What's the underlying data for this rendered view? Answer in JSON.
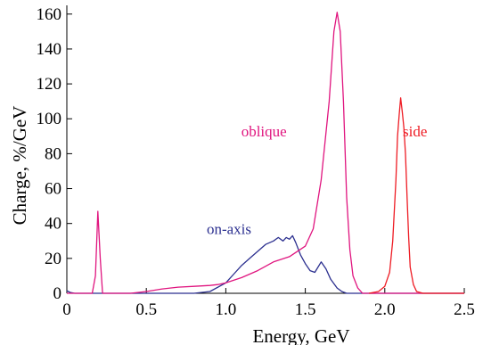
{
  "chart_data": {
    "type": "line",
    "title": "",
    "xlabel": "Energy, GeV",
    "ylabel": "Charge, %/GeV",
    "xlim": [
      0,
      2.5
    ],
    "ylim": [
      0,
      165
    ],
    "x_ticks": [
      0,
      0.5,
      1.0,
      1.5,
      2.0,
      2.5
    ],
    "x_tick_labels": [
      "0",
      "0.5",
      "1.0",
      "1.5",
      "2.0",
      "2.5"
    ],
    "y_ticks": [
      0,
      20,
      40,
      60,
      80,
      100,
      120,
      140,
      160
    ],
    "y_tick_labels": [
      "0",
      "20",
      "40",
      "60",
      "80",
      "100",
      "120",
      "140",
      "160"
    ],
    "grid": false,
    "series": [
      {
        "name": "on-axis",
        "color": "#2b2f8f",
        "label_position": [
          1.02,
          34
        ],
        "points": [
          [
            0.0,
            1.5
          ],
          [
            0.02,
            0.5
          ],
          [
            0.05,
            0
          ],
          [
            0.8,
            0
          ],
          [
            0.9,
            1
          ],
          [
            1.0,
            6
          ],
          [
            1.05,
            11
          ],
          [
            1.1,
            16
          ],
          [
            1.15,
            20
          ],
          [
            1.2,
            24
          ],
          [
            1.25,
            28
          ],
          [
            1.3,
            30
          ],
          [
            1.33,
            32
          ],
          [
            1.36,
            30
          ],
          [
            1.38,
            32
          ],
          [
            1.4,
            31
          ],
          [
            1.42,
            33
          ],
          [
            1.44,
            29
          ],
          [
            1.47,
            22
          ],
          [
            1.5,
            17
          ],
          [
            1.53,
            13
          ],
          [
            1.56,
            12
          ],
          [
            1.6,
            18
          ],
          [
            1.63,
            14
          ],
          [
            1.66,
            8
          ],
          [
            1.7,
            3
          ],
          [
            1.73,
            1
          ],
          [
            1.76,
            0
          ],
          [
            2.5,
            0
          ]
        ]
      },
      {
        "name": "oblique",
        "color": "#e0157f",
        "label_position": [
          1.24,
          90
        ],
        "points": [
          [
            0.0,
            0
          ],
          [
            0.16,
            0
          ],
          [
            0.18,
            10
          ],
          [
            0.195,
            47
          ],
          [
            0.21,
            20
          ],
          [
            0.225,
            0
          ],
          [
            0.4,
            0
          ],
          [
            0.5,
            1
          ],
          [
            0.6,
            2.5
          ],
          [
            0.7,
            3.5
          ],
          [
            0.8,
            4
          ],
          [
            0.9,
            4.5
          ],
          [
            0.95,
            5
          ],
          [
            1.0,
            6
          ],
          [
            1.1,
            9
          ],
          [
            1.2,
            13
          ],
          [
            1.3,
            18
          ],
          [
            1.4,
            21
          ],
          [
            1.5,
            27
          ],
          [
            1.55,
            37
          ],
          [
            1.6,
            65
          ],
          [
            1.65,
            110
          ],
          [
            1.68,
            150
          ],
          [
            1.7,
            161
          ],
          [
            1.72,
            150
          ],
          [
            1.74,
            110
          ],
          [
            1.76,
            55
          ],
          [
            1.78,
            25
          ],
          [
            1.8,
            10
          ],
          [
            1.83,
            3
          ],
          [
            1.86,
            0
          ],
          [
            2.5,
            0
          ]
        ]
      },
      {
        "name": "side",
        "color": "#ee1c24",
        "label_position": [
          2.19,
          90
        ],
        "points": [
          [
            1.9,
            0
          ],
          [
            1.96,
            1
          ],
          [
            2.0,
            4
          ],
          [
            2.03,
            12
          ],
          [
            2.05,
            30
          ],
          [
            2.07,
            65
          ],
          [
            2.08,
            90
          ],
          [
            2.09,
            102
          ],
          [
            2.1,
            112
          ],
          [
            2.11,
            104
          ],
          [
            2.12,
            95
          ],
          [
            2.13,
            80
          ],
          [
            2.14,
            55
          ],
          [
            2.15,
            32
          ],
          [
            2.16,
            15
          ],
          [
            2.18,
            5
          ],
          [
            2.2,
            1
          ],
          [
            2.24,
            0
          ],
          [
            2.5,
            0
          ]
        ]
      }
    ]
  }
}
